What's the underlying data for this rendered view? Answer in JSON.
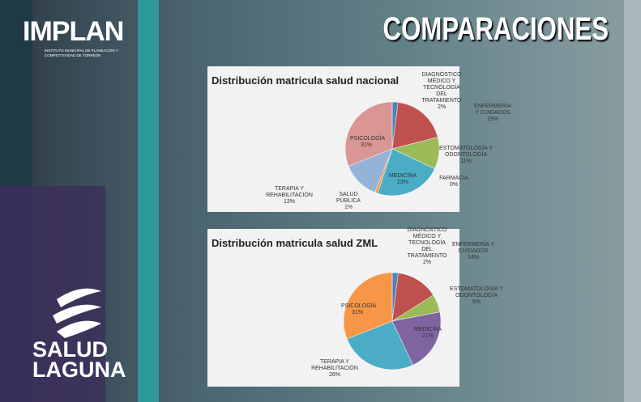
{
  "header": {
    "logo": "IMPLAN",
    "logo_subtitle": "INSTITUTO MUNICIPAL DE PLANEACIÓN Y COMPETITIVIDAD DE TORREÓN",
    "title": "COMPARACIONES"
  },
  "footer": {
    "logo_line1": "SALUD",
    "logo_line2": "LAGUNA"
  },
  "chart_data": [
    {
      "type": "pie",
      "title": "Distribución matricula salud nacional",
      "categories": [
        "DIAGNÓSTICO MÉDICO Y TECNOLOGÍA DEL TRATAMIENTO",
        "ENFERMERÍA Y CUIDADOS",
        "ESTOMATOLOGÍA Y ODONTOLOGÍA",
        "FARMACIA",
        "MEDICINA",
        "SALUD PÚBLICA",
        "TERAPIA Y REHABILITACIÓN",
        "PSICOLOGÍA"
      ],
      "values": [
        2,
        19,
        11,
        0,
        23,
        1,
        13,
        31
      ],
      "value_labels": [
        "2%",
        "19%",
        "11%",
        "0%",
        "23%",
        "1%",
        "13%",
        "31%"
      ],
      "colors": [
        "#4f81bd",
        "#c0504d",
        "#9bbb59",
        "#8064a2",
        "#4bacc6",
        "#f79646",
        "#95b3d7",
        "#d99694"
      ]
    },
    {
      "type": "pie",
      "title": "Distribución matricula salud ZML",
      "categories": [
        "DIAGNÓSTICO MÉDICO Y TECNOLOGÍA DEL TRATAMIENTO",
        "ENFERMERÍA Y CUIDADOS",
        "ESTOMATOLOGÍA Y ODONTOLOGÍA",
        "MEDICINA",
        "TERAPIA Y REHABILITACIÓN",
        "PSICOLOGÍA"
      ],
      "values": [
        2,
        14,
        6,
        21,
        26,
        31
      ],
      "value_labels": [
        "2%",
        "14%",
        "6%",
        "21%",
        "26%",
        "31%"
      ],
      "colors": [
        "#4f81bd",
        "#c0504d",
        "#9bbb59",
        "#8064a2",
        "#4bacc6",
        "#f79646"
      ]
    }
  ]
}
